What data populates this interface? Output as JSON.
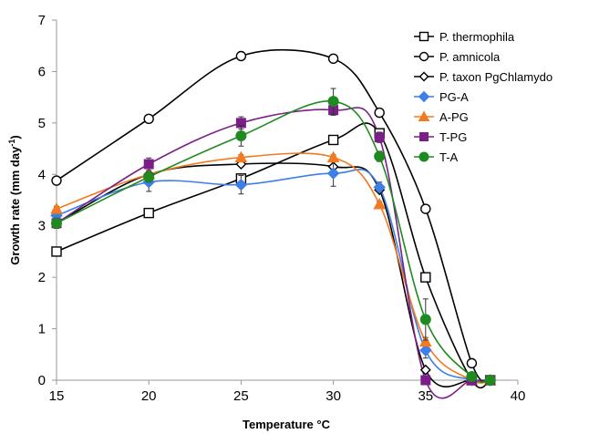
{
  "chart_data": {
    "type": "line",
    "title": "",
    "xlabel": "Temperature °C",
    "ylabel_main": "Growth rate (mm day",
    "ylabel_sup": "-1",
    "ylabel_close": ")",
    "xlim": [
      15,
      40
    ],
    "ylim": [
      0,
      7
    ],
    "xticks": [
      15,
      20,
      25,
      30,
      35,
      40
    ],
    "yticks": [
      0,
      1,
      2,
      3,
      4,
      5,
      6,
      7
    ],
    "grid": false,
    "legend_position": "top-right",
    "series": [
      {
        "name": "P. thermophila",
        "color": "#000000",
        "marker": "square-open",
        "x": [
          15,
          20,
          25,
          30,
          32.5,
          35,
          37.5,
          38.5
        ],
        "y": [
          2.5,
          3.25,
          3.92,
          4.67,
          4.8,
          2.0,
          0.0,
          0.0
        ],
        "err": [
          0,
          0,
          0,
          0,
          0,
          0,
          0,
          0
        ]
      },
      {
        "name": "P. amnicola",
        "color": "#000000",
        "marker": "circle-open",
        "x": [
          15,
          20,
          25,
          30,
          32.5,
          35,
          37.5,
          38.5
        ],
        "y": [
          3.88,
          5.08,
          6.3,
          6.25,
          5.2,
          3.33,
          0.33,
          0.0
        ],
        "err": [
          0,
          0,
          0,
          0,
          0,
          0,
          0,
          0
        ]
      },
      {
        "name": "P. taxon PgChlamydo",
        "color": "#000000",
        "marker": "diamond-open",
        "x": [
          15,
          20,
          25,
          30,
          32.5,
          35,
          37.5,
          38.5
        ],
        "y": [
          3.05,
          4.0,
          4.2,
          4.15,
          3.7,
          0.2,
          0.0,
          0.0
        ],
        "err": [
          0,
          0,
          0,
          0,
          0,
          0,
          0,
          0
        ]
      },
      {
        "name": "PG-A",
        "color": "#3d7fe6",
        "marker": "diamond",
        "x": [
          15,
          20,
          25,
          30,
          32.5,
          35,
          37.5,
          38.5
        ],
        "y": [
          3.2,
          3.85,
          3.8,
          4.02,
          3.75,
          0.58,
          0.0,
          0.0
        ],
        "err": [
          0.1,
          0.18,
          0.18,
          0.25,
          0.1,
          0.15,
          0,
          0
        ]
      },
      {
        "name": "A-PG",
        "color": "#f07b22",
        "marker": "triangle",
        "x": [
          15,
          20,
          25,
          30,
          32.5,
          35,
          37.5,
          38.5
        ],
        "y": [
          3.33,
          4.0,
          4.33,
          4.33,
          3.42,
          0.75,
          0.0,
          0.0
        ],
        "err": [
          0.05,
          0.05,
          0.05,
          0.05,
          0.05,
          0.08,
          0,
          0
        ]
      },
      {
        "name": "T-PG",
        "color": "#7a1e88",
        "marker": "square",
        "x": [
          15,
          20,
          25,
          30,
          32.5,
          35,
          37.5,
          38.5
        ],
        "y": [
          3.05,
          4.2,
          5.0,
          5.25,
          4.72,
          0.0,
          0.0,
          0.0
        ],
        "err": [
          0.05,
          0.12,
          0.12,
          0.1,
          0.1,
          0,
          0,
          0
        ]
      },
      {
        "name": "T-A",
        "color": "#1f8a1f",
        "marker": "circle",
        "x": [
          15,
          20,
          25,
          30,
          32.5,
          35,
          37.5,
          38.5
        ],
        "y": [
          3.05,
          3.95,
          4.75,
          5.42,
          4.35,
          1.18,
          0.07,
          0.0
        ],
        "err": [
          0.1,
          0.1,
          0.2,
          0.25,
          0.1,
          0.4,
          0.05,
          0
        ]
      }
    ]
  }
}
